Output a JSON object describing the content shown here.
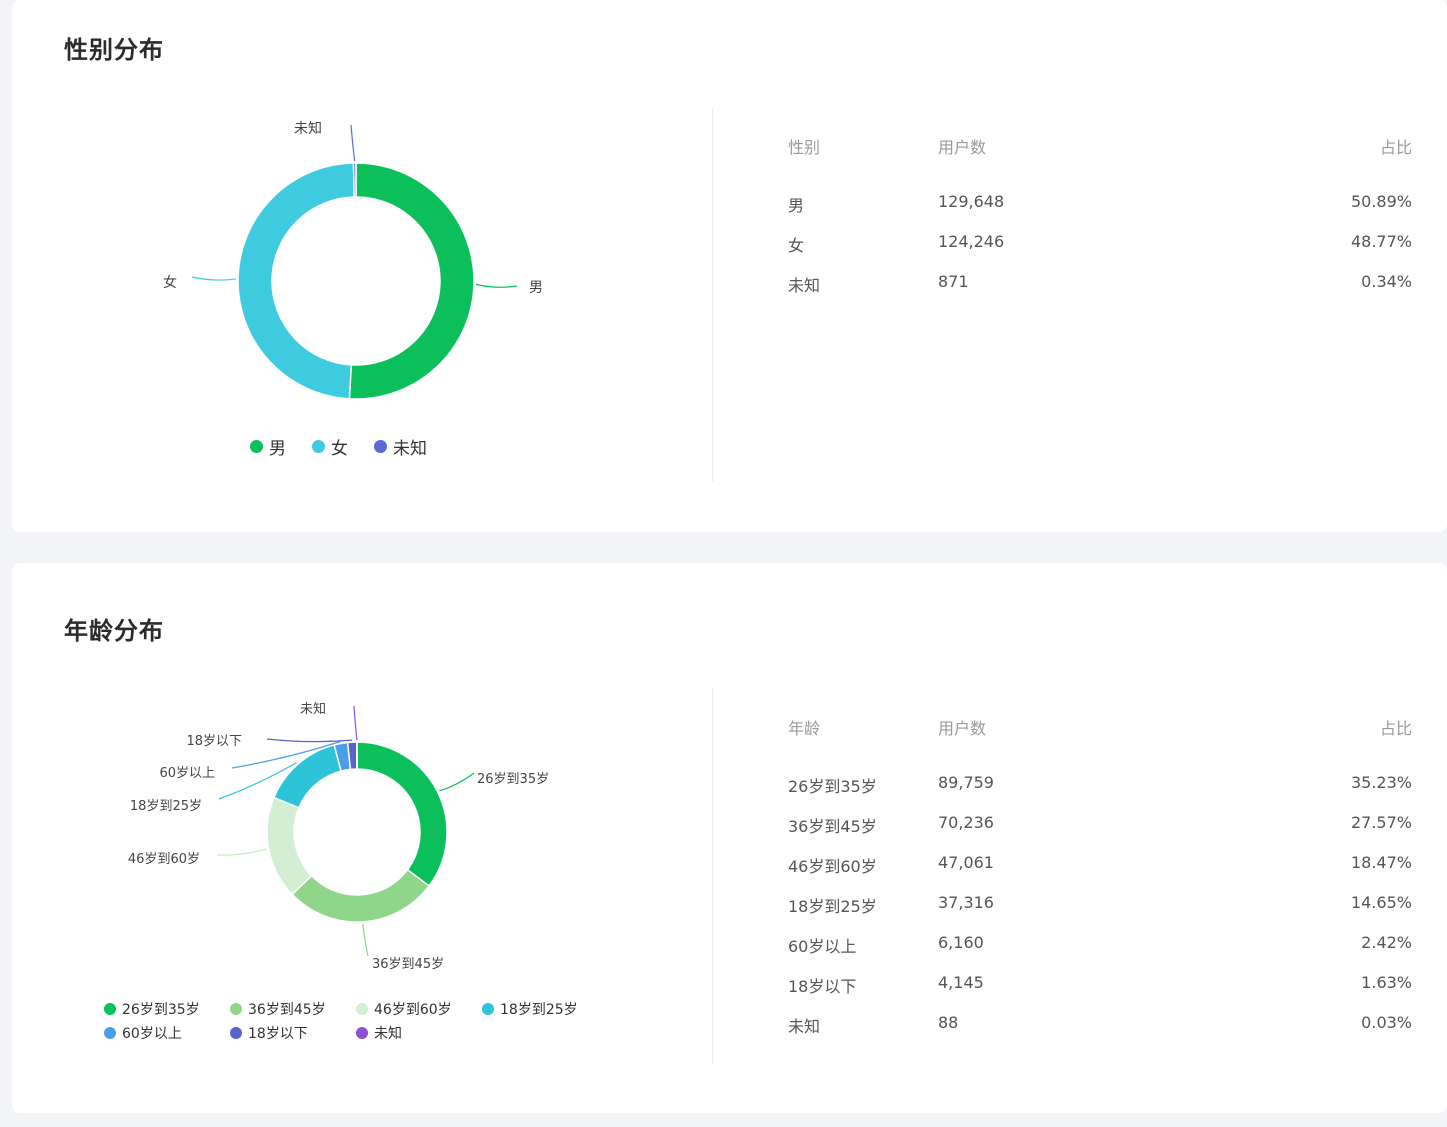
{
  "gender": {
    "title": "性别分布",
    "table": {
      "headers": [
        "性别",
        "用户数",
        "占比"
      ],
      "rows": [
        [
          "男",
          "129,648",
          "50.89%"
        ],
        [
          "女",
          "124,246",
          "48.77%"
        ],
        [
          "未知",
          "871",
          "0.34%"
        ]
      ]
    },
    "chart_data": {
      "type": "pie",
      "donut": true,
      "categories": [
        "男",
        "女",
        "未知"
      ],
      "values": [
        50.89,
        48.77,
        0.34
      ],
      "colors": [
        "#0bbf5a",
        "#3ecbe0",
        "#5b6bd6"
      ],
      "legend": "bottom",
      "title": ""
    }
  },
  "age": {
    "title": "年龄分布",
    "table": {
      "headers": [
        "年龄",
        "用户数",
        "占比"
      ],
      "rows": [
        [
          "26岁到35岁",
          "89,759",
          "35.23%"
        ],
        [
          "36岁到45岁",
          "70,236",
          "27.57%"
        ],
        [
          "46岁到60岁",
          "47,061",
          "18.47%"
        ],
        [
          "18岁到25岁",
          "37,316",
          "14.65%"
        ],
        [
          "60岁以上",
          "6,160",
          "2.42%"
        ],
        [
          "18岁以下",
          "4,145",
          "1.63%"
        ],
        [
          "未知",
          "88",
          "0.03%"
        ]
      ]
    },
    "chart_data": {
      "type": "pie",
      "donut": true,
      "categories": [
        "26岁到35岁",
        "36岁到45岁",
        "46岁到60岁",
        "18岁到25岁",
        "60岁以上",
        "18岁以下",
        "未知"
      ],
      "values": [
        35.23,
        27.57,
        18.47,
        14.65,
        2.42,
        1.63,
        0.03
      ],
      "colors": [
        "#0bbf5a",
        "#8fd68a",
        "#d3efd3",
        "#2ec4d8",
        "#4a9ee8",
        "#5a62d0",
        "#8a52d0"
      ],
      "legend": "bottom",
      "title": ""
    }
  }
}
